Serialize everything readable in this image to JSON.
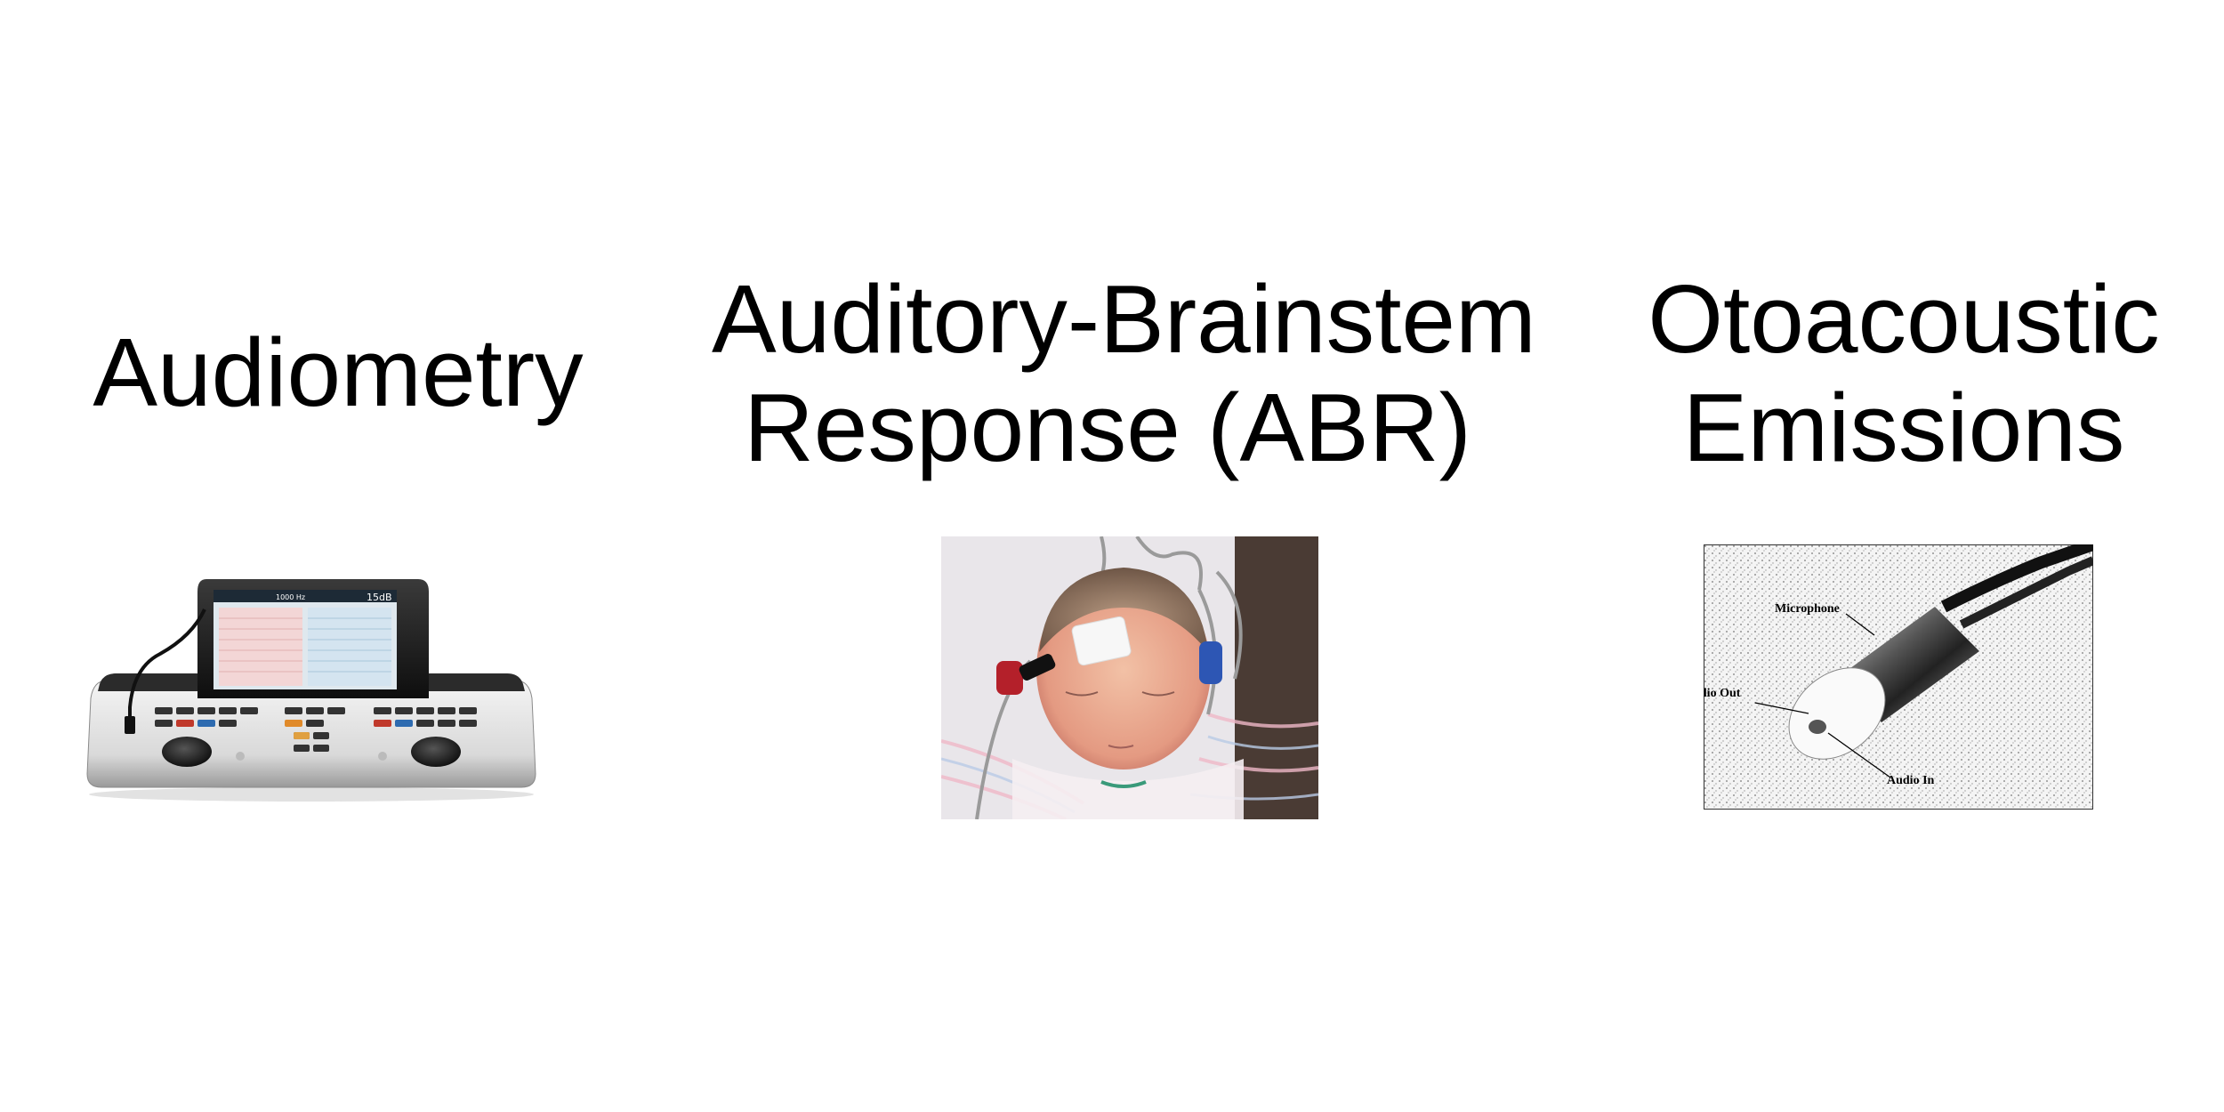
{
  "headings": {
    "audiometry": [
      "Audiometry"
    ],
    "abr": [
      "Auditory-Brainstem",
      "Response (ABR)"
    ],
    "oae": [
      "Otoacoustic",
      "Emissions"
    ]
  },
  "audiometer_screen": {
    "left_text": "1000 Hz",
    "right_text": "15dB"
  },
  "probe_labels": {
    "microphone": "Microphone",
    "audio_out": "Audio Out",
    "audio_in": "Audio In"
  }
}
